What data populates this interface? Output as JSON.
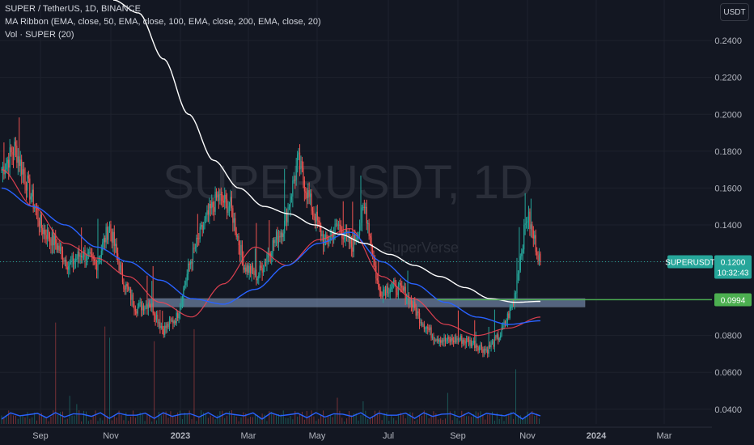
{
  "header": {
    "title": "SUPER / TetherUS, 1D, BINANCE",
    "indicator_ma": "MA Ribbon (EMA, close, 50, EMA, close, 100, EMA, close, 200, EMA, close, 20)",
    "indicator_vol": "Vol · SUPER (20)",
    "currency_button": "USDT"
  },
  "watermark": {
    "symbol": "SUPERUSDT, 1D",
    "sub": "SuperVerse"
  },
  "colors": {
    "background": "#131722",
    "grid": "#1e222d",
    "up": "#26a69a",
    "down": "#ef5350",
    "ema20": "#f23645",
    "ema50": "#ef4454",
    "ema100": "#2962ff",
    "ema200": "#ffffff",
    "zone": "#8aa4cc",
    "level_line": "#4caf50"
  },
  "price_labels": {
    "current_symbol": "SUPERUSDT",
    "current_price": "0.1200",
    "countdown": "10:32:43",
    "level_price": "0.0994"
  },
  "chart_data": {
    "type": "candlestick",
    "title": "SUPER / TetherUS, 1D, BINANCE",
    "x_ticks": [
      "Sep",
      "Nov",
      "2023",
      "Mar",
      "May",
      "Jul",
      "Sep",
      "Nov",
      "2024",
      "Mar"
    ],
    "y_ticks": [
      "0.2400",
      "0.2200",
      "0.2000",
      "0.1800",
      "0.1600",
      "0.1400",
      "0.0800",
      "0.0600",
      "0.0400"
    ],
    "y_range": [
      0.032,
      0.262
    ],
    "grid": true,
    "price_path": [
      {
        "t": "Aug 2022",
        "close": 0.17
      },
      {
        "t": "Aug 2022",
        "close": 0.182
      },
      {
        "t": "Aug 2022",
        "close": 0.16
      },
      {
        "t": "Sep 2022",
        "close": 0.138
      },
      {
        "t": "Sep 2022",
        "close": 0.13
      },
      {
        "t": "Sep 2022",
        "close": 0.118
      },
      {
        "t": "Oct 2022",
        "close": 0.125
      },
      {
        "t": "Oct 2022",
        "close": 0.118
      },
      {
        "t": "Nov 2022",
        "close": 0.14
      },
      {
        "t": "Nov 2022",
        "close": 0.11
      },
      {
        "t": "Nov 2022",
        "close": 0.095
      },
      {
        "t": "Dec 2022",
        "close": 0.098
      },
      {
        "t": "Dec 2022",
        "close": 0.083
      },
      {
        "t": "Jan 2023",
        "close": 0.09
      },
      {
        "t": "Jan 2023",
        "close": 0.12
      },
      {
        "t": "Feb 2023",
        "close": 0.14
      },
      {
        "t": "Feb 2023",
        "close": 0.155
      },
      {
        "t": "Feb 2023",
        "close": 0.15
      },
      {
        "t": "Mar 2023",
        "close": 0.118
      },
      {
        "t": "Mar 2023",
        "close": 0.112
      },
      {
        "t": "Apr 2023",
        "close": 0.128
      },
      {
        "t": "Apr 2023",
        "close": 0.14
      },
      {
        "t": "Apr 2023",
        "close": 0.175
      },
      {
        "t": "May 2023",
        "close": 0.15
      },
      {
        "t": "May 2023",
        "close": 0.13
      },
      {
        "t": "Jun 2023",
        "close": 0.14
      },
      {
        "t": "Jun 2023",
        "close": 0.128
      },
      {
        "t": "Jun 2023",
        "close": 0.15
      },
      {
        "t": "Jul 2023",
        "close": 0.104
      },
      {
        "t": "Jul 2023",
        "close": 0.107
      },
      {
        "t": "Aug 2023",
        "close": 0.103
      },
      {
        "t": "Aug 2023",
        "close": 0.09
      },
      {
        "t": "Sep 2023",
        "close": 0.08
      },
      {
        "t": "Sep 2023",
        "close": 0.077
      },
      {
        "t": "Oct 2023",
        "close": 0.078
      },
      {
        "t": "Oct 2023",
        "close": 0.076
      },
      {
        "t": "Oct 2023",
        "close": 0.072
      },
      {
        "t": "Nov 2023",
        "close": 0.08
      },
      {
        "t": "Nov 2023",
        "close": 0.098
      },
      {
        "t": "Nov 2023",
        "close": 0.146
      },
      {
        "t": "Nov 2023",
        "close": 0.12
      }
    ],
    "ema200": [
      0.262,
      0.255,
      0.23,
      0.2,
      0.175,
      0.16,
      0.15,
      0.146,
      0.14,
      0.135,
      0.13,
      0.124,
      0.118,
      0.112,
      0.106,
      0.1,
      0.098,
      0.0985
    ],
    "ema100": [
      0.16,
      0.15,
      0.14,
      0.128,
      0.12,
      0.11,
      0.1,
      0.097,
      0.105,
      0.118,
      0.13,
      0.136,
      0.12,
      0.108,
      0.098,
      0.09,
      0.086,
      0.088
    ],
    "ema50": [
      0.17,
      0.15,
      0.13,
      0.122,
      0.112,
      0.098,
      0.09,
      0.108,
      0.128,
      0.118,
      0.132,
      0.138,
      0.112,
      0.1,
      0.086,
      0.08,
      0.084,
      0.09
    ],
    "zone": {
      "from": "Nov 2022",
      "to": "Nov 2023",
      "low": 0.0955,
      "high": 0.1
    },
    "level": 0.0994,
    "current_price": 0.12
  }
}
